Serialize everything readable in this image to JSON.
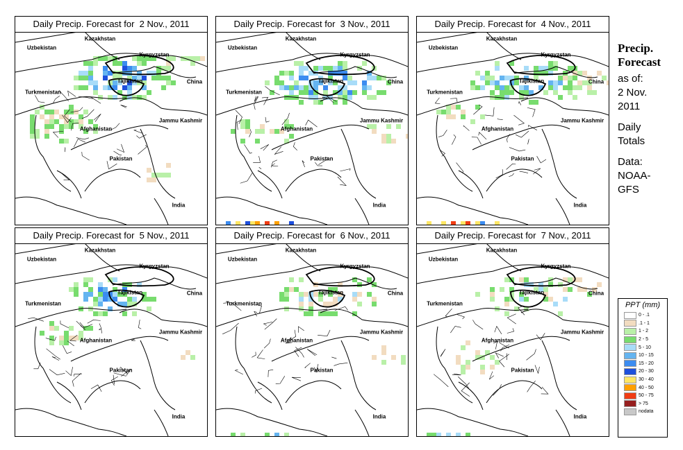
{
  "panels": [
    {
      "title": "Daily Precip. Forecast for  2 Nov., 2011",
      "day": 2
    },
    {
      "title": "Daily Precip. Forecast for  3 Nov., 2011",
      "day": 3
    },
    {
      "title": "Daily Precip. Forecast for  4 Nov., 2011",
      "day": 4
    },
    {
      "title": "Daily Precip. Forecast for  5 Nov., 2011",
      "day": 5
    },
    {
      "title": "Daily Precip. Forecast for  6 Nov., 2011",
      "day": 6
    },
    {
      "title": "Daily Precip. Forecast for  7 Nov., 2011",
      "day": 7
    }
  ],
  "countries": {
    "kazakhstan": "Kazakhstan",
    "uzbekistan": "Uzbekistan",
    "kyrgyzstan": "Kyrgyzstan",
    "china": "China",
    "turkmenistan": "Turkmenistan",
    "tajikistan": "Tajikistan",
    "jammu_kashmir": "Jammu Kashmir",
    "afghanistan": "Afghanistan",
    "pakistan": "Pakistan",
    "india": "India"
  },
  "side": {
    "title_line1": "Precip.",
    "title_line2": "Forecast",
    "asof_line1": "as of:",
    "asof_line2": "2 Nov.",
    "asof_line3": "2011",
    "totals_line1": "Daily",
    "totals_line2": "Totals",
    "data_line1": "Data:",
    "data_line2": "NOAA-",
    "data_line3": "GFS"
  },
  "legend": {
    "title": "PPT (mm)",
    "items": [
      {
        "label": "0 - .1",
        "color": "#ffffff"
      },
      {
        "label": ".1 - 1",
        "color": "#f2dcc0"
      },
      {
        "label": "1 - 2",
        "color": "#b9f0a8"
      },
      {
        "label": "2 - 5",
        "color": "#78dc6e"
      },
      {
        "label": "5 - 10",
        "color": "#a8dcf8"
      },
      {
        "label": "10 - 15",
        "color": "#64b4f0"
      },
      {
        "label": "15 - 20",
        "color": "#3c8cf0"
      },
      {
        "label": "20 - 30",
        "color": "#1e50dc"
      },
      {
        "label": "30 - 40",
        "color": "#ffe664"
      },
      {
        "label": "40 - 50",
        "color": "#ffa000"
      },
      {
        "label": "50 - 75",
        "color": "#f03c14"
      },
      {
        "label": "> 75",
        "color": "#961e1e"
      },
      {
        "label": "nodata",
        "color": "#c8c8c8"
      }
    ]
  }
}
